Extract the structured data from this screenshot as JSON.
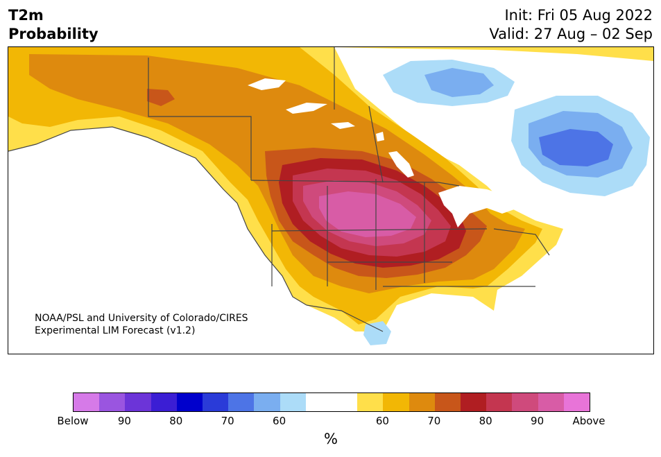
{
  "title": {
    "left_line1": "T2m",
    "left_line2": "Probability",
    "right_line1": "Init: Fri 05 Aug 2022",
    "right_line2": "Valid: 27 Aug – 02 Sep"
  },
  "credit": {
    "line1": "NOAA/PSL and University of Colorado/CIRES",
    "line2": "Experimental LIM Forecast (v1.2)"
  },
  "colorbar": {
    "unit": "%",
    "colors": [
      "#d67ae8",
      "#9a55e0",
      "#6c34d8",
      "#3b1ed4",
      "#0000cc",
      "#2a3bd8",
      "#4d74e6",
      "#7aaef0",
      "#acdcf8",
      "#ffffff",
      "#ffffff",
      "#ffdf4a",
      "#f2b705",
      "#de8a0e",
      "#c8561a",
      "#b01e22",
      "#c43650",
      "#cf4a7c",
      "#d85ca6",
      "#e874d8"
    ],
    "tick_labels": [
      "Below",
      "90",
      "80",
      "70",
      "60",
      "60",
      "70",
      "80",
      "90",
      "Above"
    ]
  },
  "map": {
    "colors": {
      "ocean": "#ffffff",
      "yellow": "#ffdf4a",
      "gold": "#f2b705",
      "orange": "#de8a0e",
      "rust": "#c8561a",
      "red": "#b01e22",
      "rose": "#c43650",
      "magenta": "#cf4a7c",
      "pink": "#d85ca6",
      "lightblue": "#acdcf8",
      "midblue": "#7aaef0",
      "blue": "#4d74e6"
    }
  }
}
